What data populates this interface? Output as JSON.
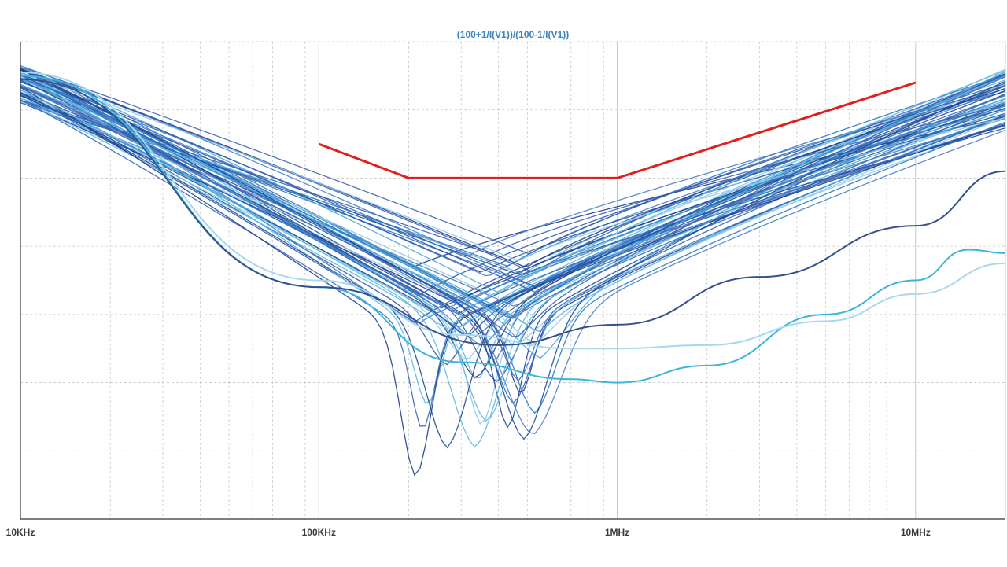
{
  "chart_data": {
    "type": "line",
    "title": "(100+1/I(V1))/(100-1/I(V1))",
    "xlabel": "",
    "ylabel": "",
    "x_scale": "log",
    "xlim": [
      10000,
      20000000
    ],
    "ylim": [
      0,
      7
    ],
    "grid": true,
    "x_tick_labels": [
      {
        "value": 10000,
        "label": "10KHz"
      },
      {
        "value": 100000,
        "label": "100KHz"
      },
      {
        "value": 1000000,
        "label": "1MHz"
      },
      {
        "value": 10000000,
        "label": "10MHz"
      }
    ],
    "y_gridlines": [
      1,
      2,
      3,
      4,
      5,
      6
    ],
    "limit_line": {
      "color": "#e02020",
      "points": [
        [
          100000,
          5.5
        ],
        [
          200000,
          5.0
        ],
        [
          1000000,
          5.0
        ],
        [
          10000000,
          6.4
        ]
      ]
    },
    "series_palette": [
      "#1f3f8f",
      "#2a55a8",
      "#3567b8",
      "#4a7fc8",
      "#2d78c4",
      "#4aa6d8",
      "#5cb8e0",
      "#8ccaea",
      "#1c4a9c",
      "#3d62b5"
    ],
    "curve_family": {
      "count": 60,
      "start_x": 10000,
      "start_y_range": [
        6.1,
        6.65
      ],
      "end_x": 20000000,
      "end_y_range": [
        5.7,
        6.6
      ],
      "dip_freq_range": [
        210000,
        560000
      ],
      "dip_min_range": [
        0.55,
        3.9
      ]
    },
    "highlighted_series": [
      {
        "color": "#3ab6dc",
        "points": [
          [
            10000,
            6.5
          ],
          [
            100000,
            3.4
          ],
          [
            300000,
            2.3
          ],
          [
            700000,
            2.05
          ],
          [
            1000000,
            2.0
          ],
          [
            2000000,
            2.25
          ],
          [
            5000000,
            3.0
          ],
          [
            10000000,
            3.5
          ],
          [
            15000000,
            3.95
          ],
          [
            20000000,
            3.9
          ]
        ]
      },
      {
        "color": "#a8d8ee",
        "points": [
          [
            10000,
            6.55
          ],
          [
            100000,
            3.5
          ],
          [
            300000,
            2.7
          ],
          [
            700000,
            2.5
          ],
          [
            1000000,
            2.5
          ],
          [
            2000000,
            2.55
          ],
          [
            5000000,
            2.9
          ],
          [
            10000000,
            3.3
          ],
          [
            20000000,
            3.75
          ]
        ]
      },
      {
        "color": "#34508f",
        "points": [
          [
            10000,
            6.45
          ],
          [
            100000,
            3.4
          ],
          [
            400000,
            2.55
          ],
          [
            1000000,
            2.85
          ],
          [
            3000000,
            3.55
          ],
          [
            10000000,
            4.3
          ],
          [
            20000000,
            5.1
          ]
        ]
      }
    ]
  }
}
